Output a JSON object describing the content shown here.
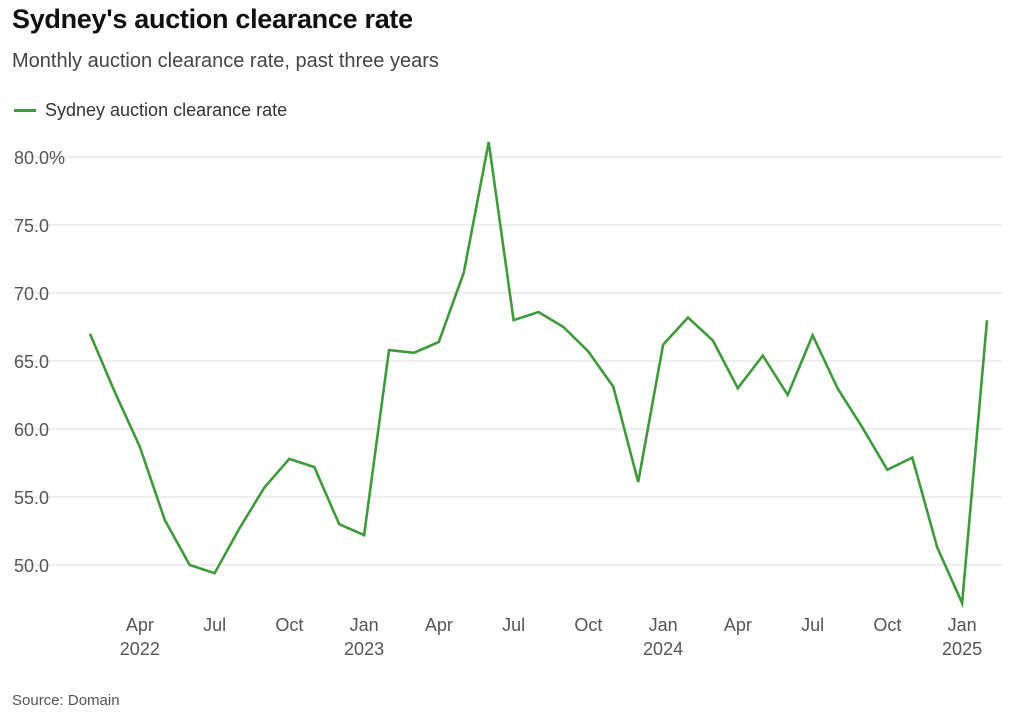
{
  "chart_data": {
    "type": "line",
    "title": "Sydney's auction clearance rate",
    "subtitle": "Monthly auction clearance rate, past three years",
    "source": "Source: Domain",
    "xlabel": "",
    "ylabel": "",
    "ylim": [
      47,
      81.5
    ],
    "yticks": [
      {
        "value": 80,
        "label": "80.0%"
      },
      {
        "value": 75,
        "label": "75.0"
      },
      {
        "value": 70,
        "label": "70.0"
      },
      {
        "value": 65,
        "label": "65.0"
      },
      {
        "value": 60,
        "label": "60.0"
      },
      {
        "value": 55,
        "label": "55.0"
      },
      {
        "value": 50,
        "label": "50.0"
      }
    ],
    "x": [
      "2022-02",
      "2022-03",
      "2022-04",
      "2022-05",
      "2022-06",
      "2022-07",
      "2022-08",
      "2022-09",
      "2022-10",
      "2022-11",
      "2022-12",
      "2023-01",
      "2023-02",
      "2023-03",
      "2023-04",
      "2023-05",
      "2023-06",
      "2023-07",
      "2023-08",
      "2023-09",
      "2023-10",
      "2023-11",
      "2023-12",
      "2024-01",
      "2024-02",
      "2024-03",
      "2024-04",
      "2024-05",
      "2024-06",
      "2024-07",
      "2024-08",
      "2024-09",
      "2024-10",
      "2024-11",
      "2024-12",
      "2025-01",
      "2025-02"
    ],
    "xticks": [
      {
        "index": 2,
        "label": "Apr",
        "year": "2022"
      },
      {
        "index": 5,
        "label": "Jul",
        "year": ""
      },
      {
        "index": 8,
        "label": "Oct",
        "year": ""
      },
      {
        "index": 11,
        "label": "Jan",
        "year": "2023"
      },
      {
        "index": 14,
        "label": "Apr",
        "year": ""
      },
      {
        "index": 17,
        "label": "Jul",
        "year": ""
      },
      {
        "index": 20,
        "label": "Oct",
        "year": ""
      },
      {
        "index": 23,
        "label": "Jan",
        "year": "2024"
      },
      {
        "index": 26,
        "label": "Apr",
        "year": ""
      },
      {
        "index": 29,
        "label": "Jul",
        "year": ""
      },
      {
        "index": 32,
        "label": "Oct",
        "year": ""
      },
      {
        "index": 35,
        "label": "Jan",
        "year": "2025"
      }
    ],
    "series": [
      {
        "name": "Sydney auction clearance rate",
        "color": "#3f9a3b",
        "values": [
          67.0,
          62.7,
          58.7,
          53.3,
          50.0,
          49.4,
          52.7,
          55.7,
          57.8,
          57.2,
          53.0,
          52.2,
          65.8,
          65.6,
          66.4,
          71.5,
          81.1,
          68.0,
          68.6,
          67.5,
          65.7,
          63.1,
          56.1,
          66.2,
          68.2,
          66.5,
          63.0,
          65.4,
          62.5,
          66.9,
          63.0,
          60.1,
          57.0,
          57.9,
          51.3,
          47.2,
          68.0
        ]
      }
    ],
    "legend_position": "top-left",
    "grid": true,
    "colors": {
      "grid": "#dddddd",
      "baseline": "#bbbbbb"
    }
  }
}
